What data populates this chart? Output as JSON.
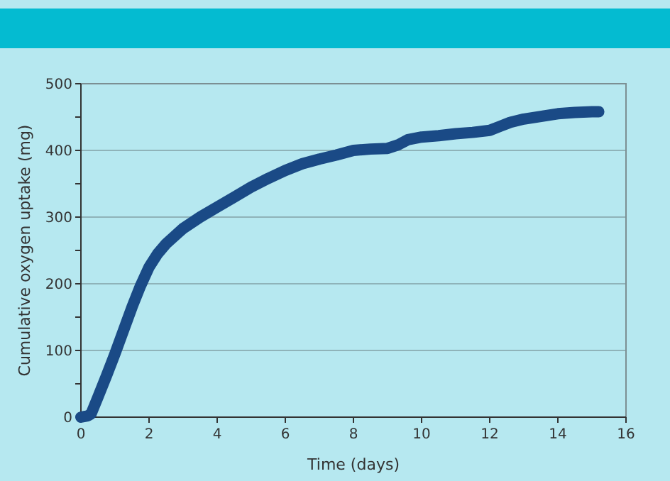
{
  "chart_data": {
    "type": "line",
    "xlabel": "Time (days)",
    "ylabel": "Cumulative oxygen uptake (mg)",
    "xlim": [
      0,
      16
    ],
    "xticks": [
      0,
      2,
      4,
      6,
      8,
      10,
      12,
      14,
      16
    ],
    "ylim": [
      0,
      500
    ],
    "yticks": [
      0,
      {
        "value": 50,
        "label": null
      },
      100,
      {
        "value": 150,
        "label": null
      },
      200,
      {
        "value": 250,
        "label": null
      },
      300,
      {
        "value": 350,
        "label": null
      },
      400,
      {
        "value": 450,
        "label": null
      },
      500
    ],
    "grid": "y",
    "marker": "none",
    "line_style": "solid",
    "series": [
      {
        "color": "#1a4a86",
        "x": [
          0,
          0.2,
          0.3,
          0.5,
          0.75,
          1,
          1.25,
          1.5,
          1.75,
          2,
          2.25,
          2.5,
          3,
          3.5,
          4,
          4.5,
          5,
          5.5,
          6,
          6.5,
          7,
          7.5,
          8,
          8.5,
          9,
          9.3,
          9.6,
          10,
          10.5,
          11,
          11.5,
          12,
          12.3,
          12.6,
          13,
          13.5,
          14,
          14.5,
          15,
          15.2
        ],
        "values": [
          0,
          2,
          5,
          30,
          62,
          95,
          130,
          165,
          197,
          225,
          245,
          260,
          283,
          300,
          315,
          330,
          345,
          358,
          370,
          380,
          387,
          393,
          400,
          402,
          403,
          408,
          416,
          420,
          422,
          425,
          427,
          430,
          436,
          442,
          447,
          451,
          455,
          457,
          458,
          458
        ]
      }
    ]
  }
}
